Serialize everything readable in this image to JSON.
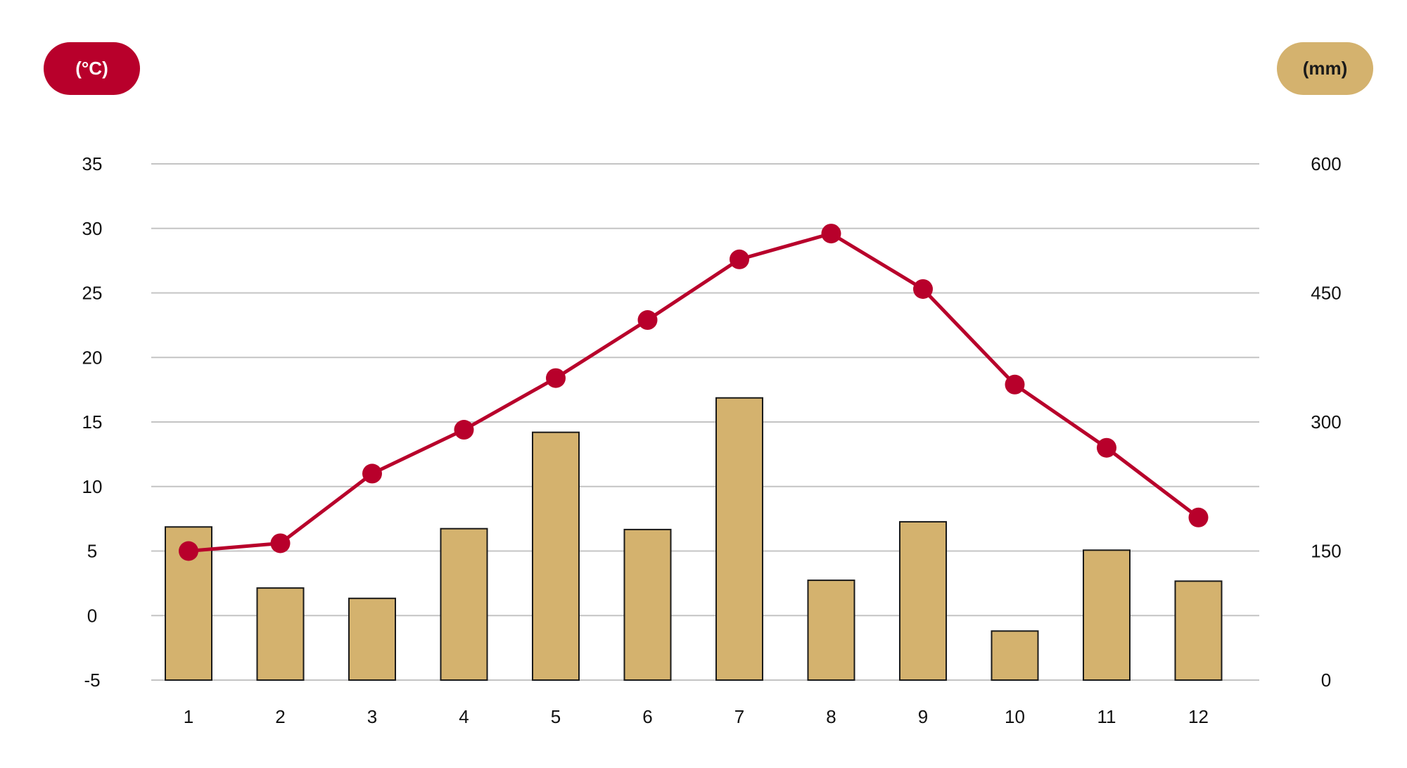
{
  "units": {
    "temperature": "(°C)",
    "precipitation": "(mm)"
  },
  "colors": {
    "temperature": "#b8002b",
    "precipitation": "#d4b26e",
    "bar_stroke": "#1a1a1a",
    "grid": "#c4c4c4",
    "unit_precip_text": "#1a1a1a",
    "unit_temp_text": "#ffffff"
  },
  "chart_data": {
    "type": "bar+line",
    "categories": [
      "1",
      "2",
      "3",
      "4",
      "5",
      "6",
      "7",
      "8",
      "9",
      "10",
      "11",
      "12"
    ],
    "series": [
      {
        "type": "bar",
        "axis": "right",
        "values": [
          178,
          107,
          95,
          176,
          288,
          175,
          328,
          116,
          184,
          57,
          151,
          115
        ]
      },
      {
        "type": "line",
        "axis": "left",
        "values": [
          5.0,
          5.6,
          11.0,
          14.4,
          18.4,
          22.9,
          27.6,
          29.6,
          25.3,
          17.9,
          13.0,
          7.6
        ]
      }
    ],
    "y_left": {
      "min": -5,
      "max": 35,
      "ticks": [
        35,
        30,
        25,
        20,
        15,
        10,
        5,
        0,
        -5
      ],
      "tick_labels": [
        "35",
        "30",
        "25",
        "20",
        "15",
        "10",
        "5",
        "0",
        "-5"
      ]
    },
    "y_right": {
      "min": 0,
      "max": 600,
      "ticks": [
        600,
        450,
        300,
        150,
        0
      ],
      "tick_labels": [
        "600",
        "450",
        "300",
        "150",
        "0"
      ]
    },
    "grid": true,
    "legend": "none"
  }
}
